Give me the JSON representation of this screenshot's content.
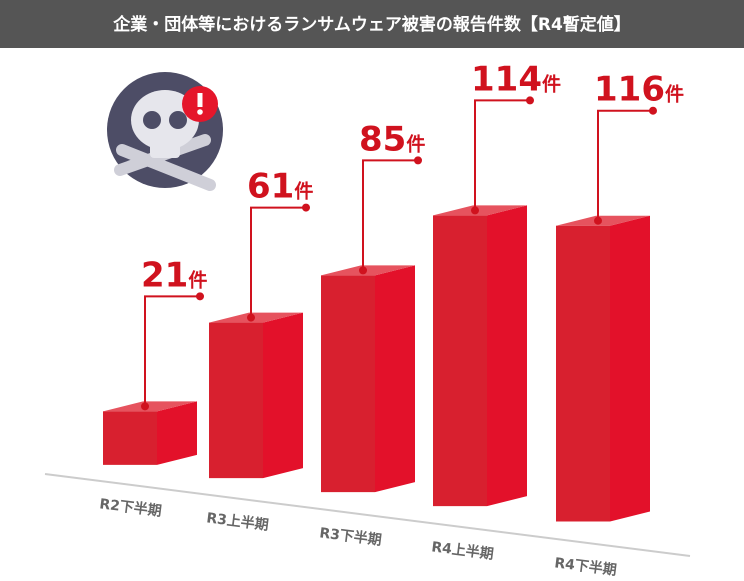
{
  "chart_data": {
    "type": "bar3d",
    "title": "企業・団体等におけるランサムウェア被害の報告件数【R4暫定値】",
    "categories": [
      "R2下半期",
      "R3上半期",
      "R3下半期",
      "R4上半期",
      "R4下半期"
    ],
    "values": [
      21,
      61,
      85,
      114,
      116
    ],
    "value_labels": [
      "21件",
      "61件",
      "85件",
      "114件",
      "116件"
    ],
    "color": "#d8202f"
  }
}
